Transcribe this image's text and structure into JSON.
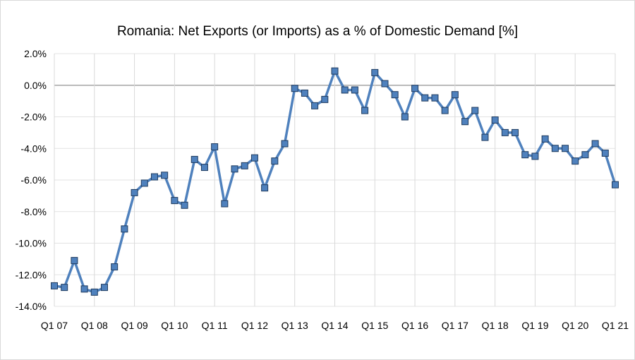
{
  "chart_data": {
    "type": "line",
    "title": "Romania: Net Exports (or Imports) as a % of Domestic Demand [%]",
    "xlabel": "",
    "ylabel": "",
    "ylim": [
      -14,
      2
    ],
    "y_ticks": [
      "2.0%",
      "0.0%",
      "-2.0%",
      "-4.0%",
      "-6.0%",
      "-8.0%",
      "-10.0%",
      "-12.0%",
      "-14.0%"
    ],
    "x_tick_labels": [
      "Q1 07",
      "Q1 08",
      "Q1 09",
      "Q1 10",
      "Q1 11",
      "Q1 12",
      "Q1 13",
      "Q1 14",
      "Q1 15",
      "Q1 16",
      "Q1 17",
      "Q1 18",
      "Q1 19",
      "Q1 20",
      "Q1 21"
    ],
    "grid": true,
    "legend": "none",
    "marker": "square",
    "color": "#4f81bd",
    "values": [
      -12.7,
      -12.8,
      -11.1,
      -12.9,
      -13.1,
      -12.8,
      -11.5,
      -9.1,
      -6.8,
      -6.2,
      -5.8,
      -5.7,
      -7.3,
      -7.6,
      -4.7,
      -5.2,
      -3.9,
      -7.5,
      -5.3,
      -5.1,
      -4.6,
      -6.5,
      -4.8,
      -3.7,
      -0.2,
      -0.5,
      -1.3,
      -0.9,
      0.9,
      -0.3,
      -0.3,
      -1.6,
      0.8,
      0.1,
      -0.6,
      -2.0,
      -0.2,
      -0.8,
      -0.8,
      -1.6,
      -0.6,
      -2.3,
      -1.6,
      -3.3,
      -2.2,
      -3.0,
      -3.0,
      -4.4,
      -4.5,
      -3.4,
      -4.0,
      -4.0,
      -4.8,
      -4.4,
      -3.7,
      -4.3,
      -6.3
    ]
  }
}
